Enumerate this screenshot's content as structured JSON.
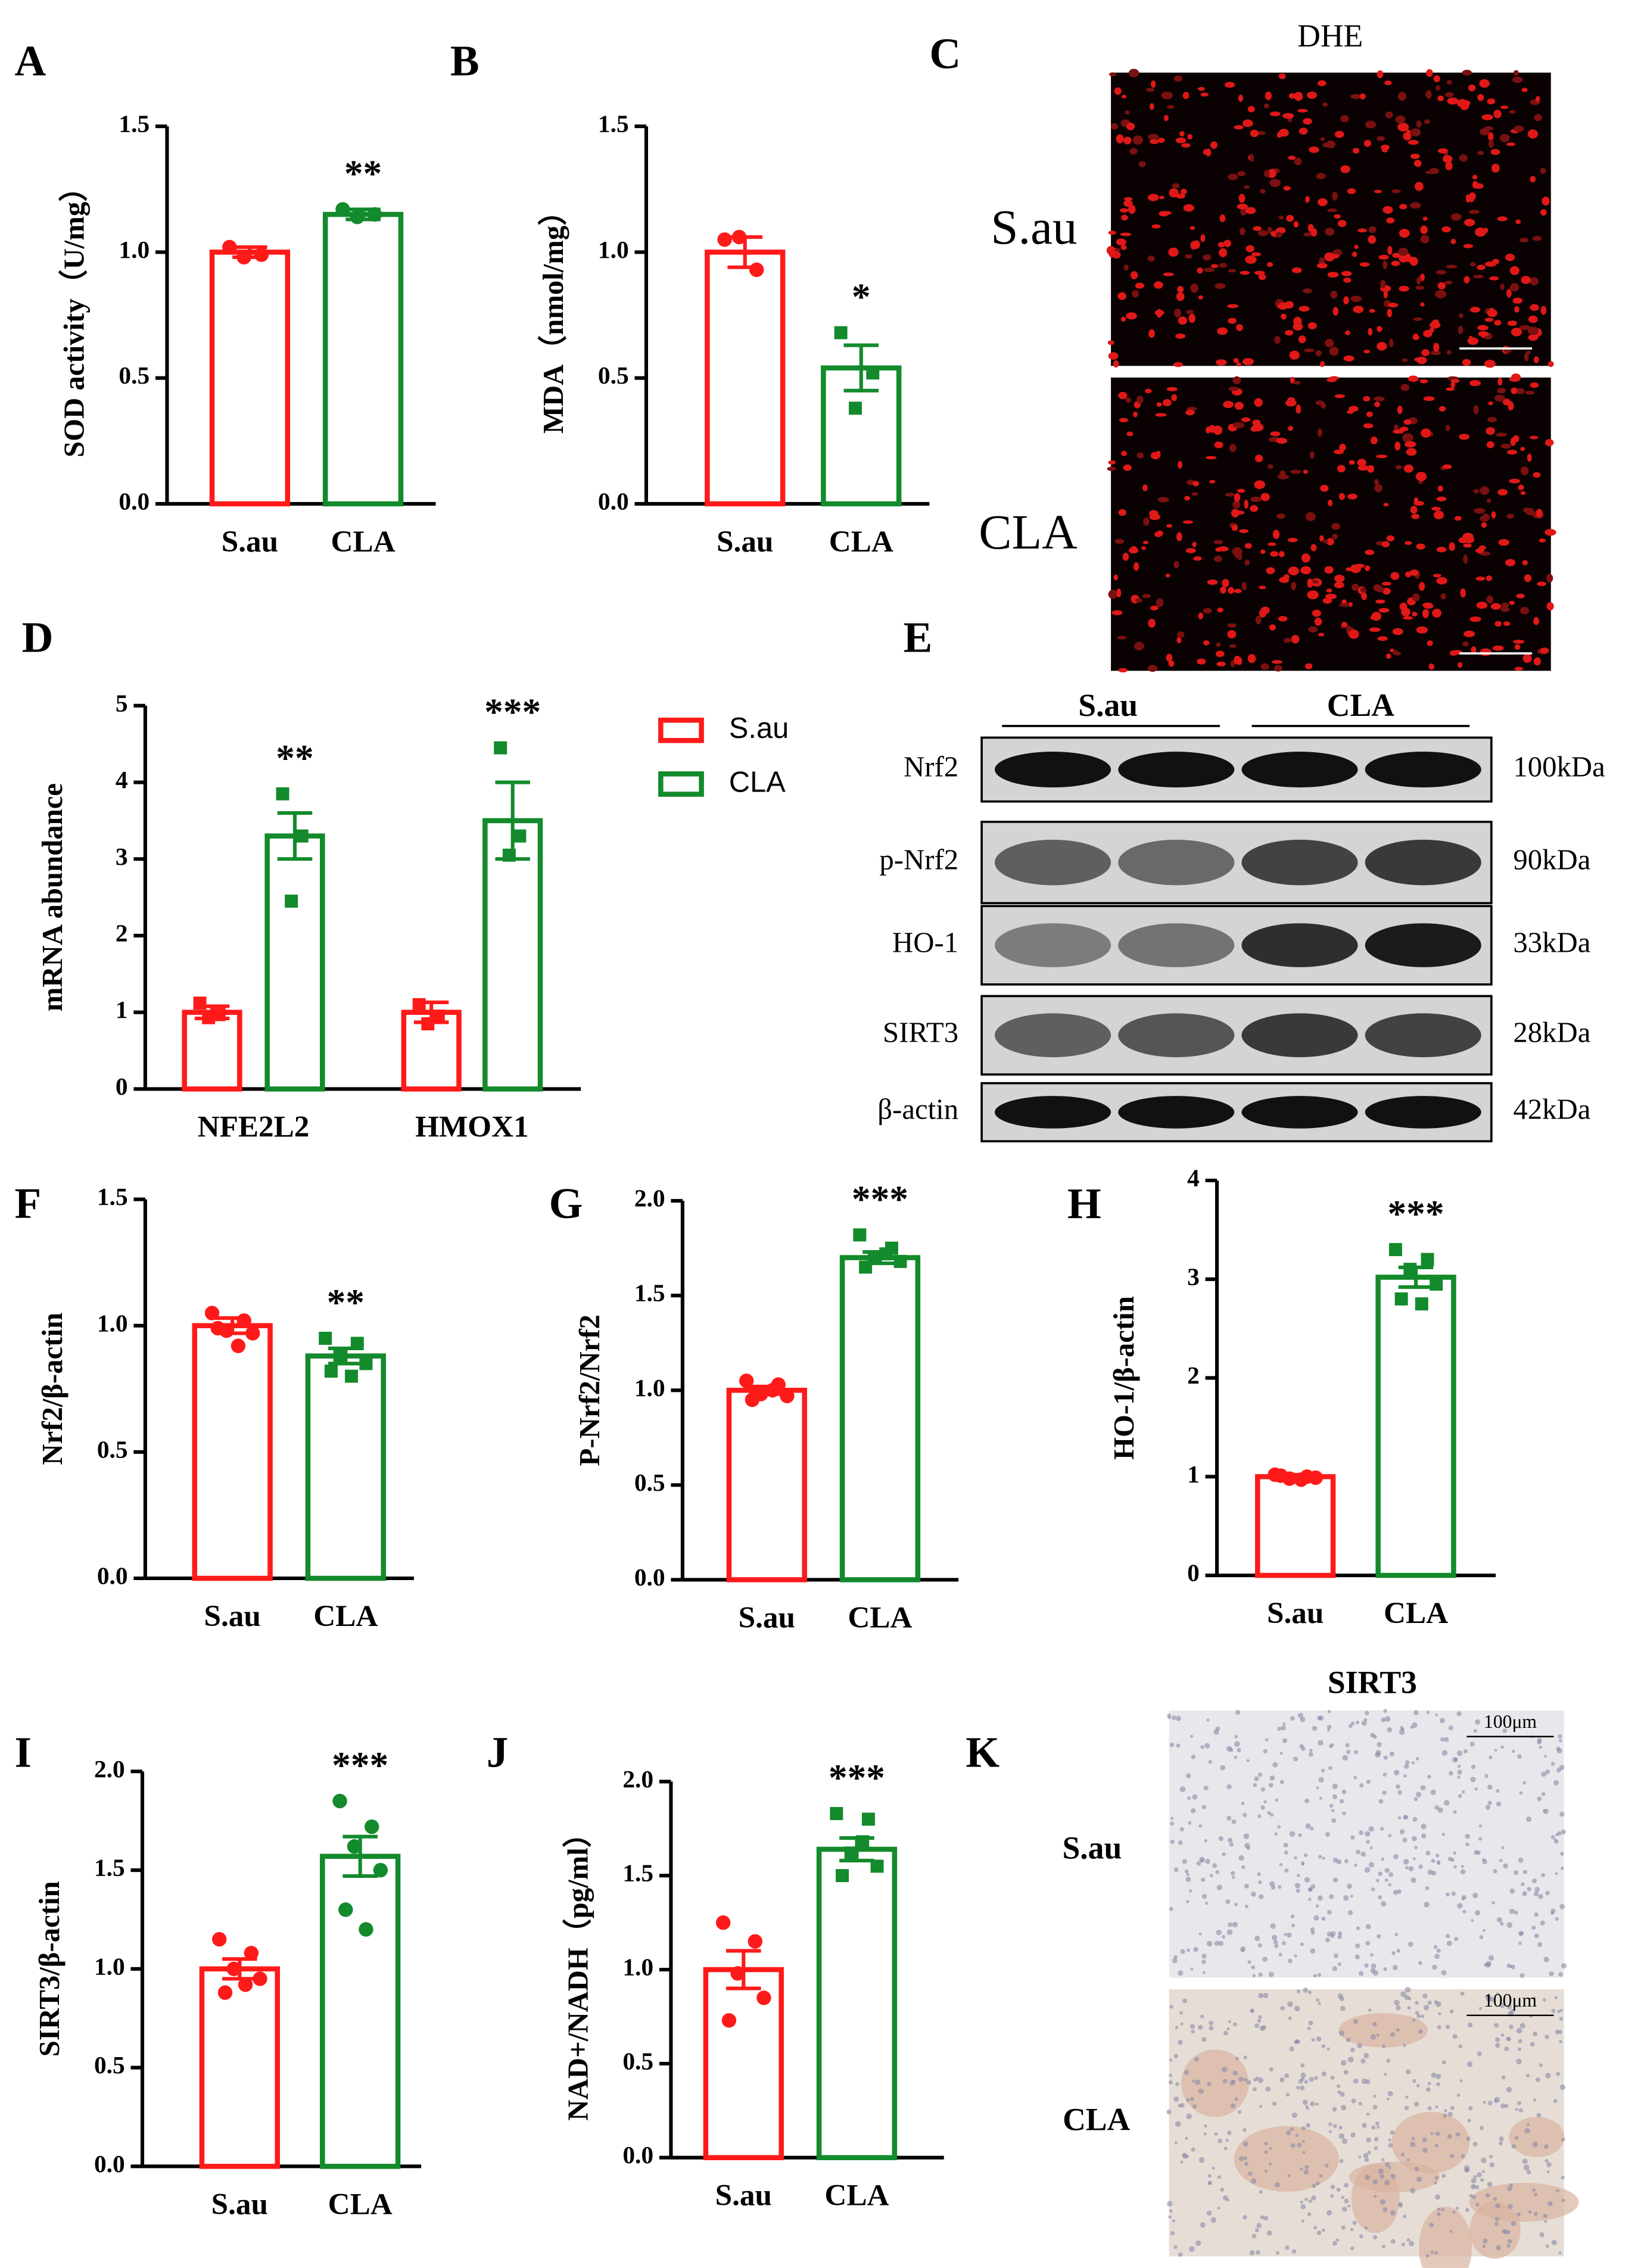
{
  "chart_data": [
    {
      "type": "bar",
      "panel": "A",
      "ylabel": "SOD activity（U/mg）",
      "categories": [
        "S.au",
        "CLA"
      ],
      "colors": [
        "#ff1a1a",
        "#138a2b"
      ],
      "markers": [
        "circle",
        "circle"
      ],
      "values": [
        1.0,
        1.15
      ],
      "errors": [
        0.02,
        0.02
      ],
      "points": [
        [
          1.02,
          0.99,
          0.98
        ],
        [
          1.17,
          1.15,
          1.14
        ]
      ],
      "annotation": "**",
      "ylim": [
        0,
        1.5
      ],
      "yticks": [
        {
          "value": 0,
          "label": "0.0"
        },
        0.5,
        {
          "value": 1,
          "label": "1.0"
        },
        1.5
      ]
    },
    {
      "type": "bar",
      "panel": "B",
      "ylabel": "MDA（nmol/mg）",
      "categories": [
        "S.au",
        "CLA"
      ],
      "colors": [
        "#ff1a1a",
        "#138a2b"
      ],
      "markers": [
        "circle",
        "square"
      ],
      "values": [
        1.0,
        0.54
      ],
      "errors": [
        0.06,
        0.09
      ],
      "points": [
        [
          1.05,
          0.93,
          1.06
        ],
        [
          0.68,
          0.52,
          0.38
        ]
      ],
      "annotation": "*",
      "ylim": [
        0,
        1.5
      ],
      "yticks": [
        {
          "value": 0,
          "label": "0.0"
        },
        0.5,
        {
          "value": 1,
          "label": "1.0"
        },
        1.5
      ]
    },
    {
      "type": "grouped_bar",
      "panel": "D",
      "ylabel": "mRNA abundance",
      "categories": [
        "NFE2L2",
        "HMOX1"
      ],
      "series": [
        {
          "name": "S.au",
          "color": "#ff1a1a",
          "marker": "square",
          "values": [
            1.0,
            1.0
          ],
          "errors": [
            0.08,
            0.13
          ],
          "points": [
            [
              1.12,
              0.97,
              0.93
            ],
            [
              1.1,
              0.95,
              0.85
            ]
          ]
        },
        {
          "name": "CLA",
          "color": "#138a2b",
          "marker": "square",
          "values": [
            3.3,
            3.5
          ],
          "errors": [
            0.3,
            0.5
          ],
          "points": [
            [
              3.85,
              3.3,
              2.45
            ],
            [
              4.45,
              3.3,
              3.05
            ]
          ]
        }
      ],
      "annotations": [
        "**",
        "***"
      ],
      "legend": true,
      "ylim": [
        0,
        5
      ],
      "yticks": [
        0,
        1,
        2,
        3,
        4,
        5
      ]
    },
    {
      "type": "bar",
      "panel": "F",
      "ylabel": "Nrf2/β-actin",
      "categories": [
        "S.au",
        "CLA"
      ],
      "colors": [
        "#ff1a1a",
        "#138a2b"
      ],
      "markers": [
        "circle",
        "square"
      ],
      "values": [
        1.0,
        0.88
      ],
      "errors": [
        0.03,
        0.03
      ],
      "points": [
        [
          1.05,
          1.02,
          0.98,
          0.97,
          0.99,
          0.92
        ],
        [
          0.95,
          0.93,
          0.88,
          0.85,
          0.82,
          0.8
        ]
      ],
      "annotation": "**",
      "ylim": [
        0,
        1.5
      ],
      "yticks": [
        {
          "value": 0,
          "label": "0.0"
        },
        0.5,
        {
          "value": 1,
          "label": "1.0"
        },
        1.5
      ]
    },
    {
      "type": "bar",
      "panel": "G",
      "ylabel": "P-Nrf2/Nrf2",
      "categories": [
        "S.au",
        "CLA"
      ],
      "colors": [
        "#ff1a1a",
        "#138a2b"
      ],
      "markers": [
        "circle",
        "square"
      ],
      "values": [
        1.0,
        1.7
      ],
      "errors": [
        0.02,
        0.03
      ],
      "points": [
        [
          1.05,
          1.03,
          0.98,
          0.97,
          0.95,
          1.0
        ],
        [
          1.82,
          1.75,
          1.7,
          1.68,
          1.65,
          1.72
        ]
      ],
      "annotation": "***",
      "ylim": [
        0,
        2
      ],
      "yticks": [
        {
          "value": 0,
          "label": "0.0"
        },
        0.5,
        {
          "value": 1,
          "label": "1.0"
        },
        1.5,
        {
          "value": 2,
          "label": "2.0"
        }
      ]
    },
    {
      "type": "bar",
      "panel": "H",
      "ylabel": "HO-1/β-actin",
      "categories": [
        "S.au",
        "CLA"
      ],
      "colors": [
        "#ff1a1a",
        "#138a2b"
      ],
      "markers": [
        "circle",
        "square"
      ],
      "values": [
        1.0,
        3.02
      ],
      "errors": [
        0.02,
        0.1
      ],
      "points": [
        [
          1.02,
          1.0,
          0.98,
          0.99,
          1.01,
          0.97
        ],
        [
          3.3,
          3.2,
          3.1,
          2.95,
          2.8,
          2.75
        ]
      ],
      "annotation": "***",
      "ylim": [
        0,
        4
      ],
      "yticks": [
        0,
        1,
        2,
        3,
        4
      ]
    },
    {
      "type": "bar",
      "panel": "I",
      "ylabel": "SIRT3/β-actin",
      "categories": [
        "S.au",
        "CLA"
      ],
      "colors": [
        "#ff1a1a",
        "#138a2b"
      ],
      "markers": [
        "circle",
        "circle"
      ],
      "values": [
        1.0,
        1.57
      ],
      "errors": [
        0.05,
        0.1
      ],
      "points": [
        [
          1.15,
          1.08,
          1.0,
          0.95,
          0.88,
          0.92
        ],
        [
          1.85,
          1.72,
          1.62,
          1.5,
          1.3,
          1.2
        ]
      ],
      "annotation": "***",
      "ylim": [
        0,
        2
      ],
      "yticks": [
        {
          "value": 0,
          "label": "0.0"
        },
        0.5,
        {
          "value": 1,
          "label": "1.0"
        },
        1.5,
        {
          "value": 2,
          "label": "2.0"
        }
      ]
    },
    {
      "type": "bar",
      "panel": "J",
      "ylabel": "NAD+/NADH（pg/ml）",
      "categories": [
        "S.au",
        "CLA"
      ],
      "colors": [
        "#ff1a1a",
        "#138a2b"
      ],
      "markers": [
        "circle",
        "square"
      ],
      "values": [
        1.0,
        1.64
      ],
      "errors": [
        0.1,
        0.06
      ],
      "points": [
        [
          1.25,
          1.15,
          0.98,
          0.85,
          0.73
        ],
        [
          1.83,
          1.8,
          1.62,
          1.55,
          1.5,
          1.68
        ]
      ],
      "annotation": "***",
      "ylim": [
        0,
        2
      ],
      "yticks": [
        {
          "value": 0,
          "label": "0.0"
        },
        0.5,
        {
          "value": 1,
          "label": "1.0"
        },
        1.5,
        {
          "value": 2,
          "label": "2.0"
        }
      ]
    }
  ],
  "panel_c": {
    "panel": "C",
    "title": "DHE",
    "rows": [
      "S.au",
      "CLA"
    ]
  },
  "panel_e": {
    "panel": "E",
    "groups": [
      "S.au",
      "CLA"
    ],
    "bands": [
      {
        "name": "Nrf2",
        "size": "100kDa"
      },
      {
        "name": "p-Nrf2",
        "size": "90kDa"
      },
      {
        "name": "HO-1",
        "size": "33kDa"
      },
      {
        "name": "SIRT3",
        "size": "28kDa"
      },
      {
        "name": "β-actin",
        "size": "42kDa"
      }
    ]
  },
  "panel_k": {
    "panel": "K",
    "title": "SIRT3",
    "rows": [
      "S.au",
      "CLA"
    ],
    "scale": "100μm"
  }
}
